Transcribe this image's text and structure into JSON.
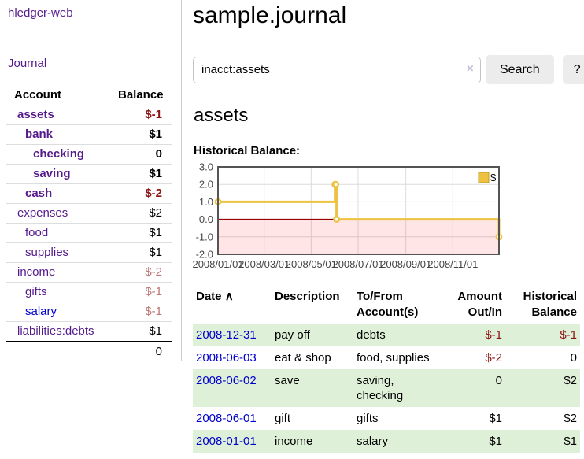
{
  "colors": {
    "link_purple": "#551a8b",
    "link_blue": "#0000cc",
    "negative": "#8b1414",
    "negative_muted": "#bd7575",
    "row_green": "#dff0d8",
    "series_gold": "#edc240",
    "series_gold_border": "#c0992b",
    "chart_zero_line": "#990000",
    "chart_negative_fill": "rgba(255,0,0,0.10)",
    "chart_border": "#545454",
    "chart_grid": "#dcdcdc"
  },
  "sidebar": {
    "app_title": "hledger-web",
    "journal_link": "Journal",
    "table": {
      "account_header": "Account",
      "balance_header": "Balance",
      "rows": [
        {
          "name": "assets",
          "balance": "$-1",
          "level": 1,
          "bold": true,
          "balance_style": "negative",
          "link_style": "purple"
        },
        {
          "name": "bank",
          "balance": "$1",
          "level": 2,
          "bold": true,
          "balance_style": "normal",
          "link_style": "purple"
        },
        {
          "name": "checking",
          "balance": "0",
          "level": 3,
          "bold": true,
          "balance_style": "normal",
          "link_style": "purple"
        },
        {
          "name": "saving",
          "balance": "$1",
          "level": 3,
          "bold": true,
          "balance_style": "normal",
          "link_style": "purple"
        },
        {
          "name": "cash",
          "balance": "$-2",
          "level": 2,
          "bold": true,
          "balance_style": "negative",
          "link_style": "purple"
        },
        {
          "name": "expenses",
          "balance": "$2",
          "level": 1,
          "bold": false,
          "balance_style": "normal",
          "link_style": "purple"
        },
        {
          "name": "food",
          "balance": "$1",
          "level": 2,
          "bold": false,
          "balance_style": "normal",
          "link_style": "purple"
        },
        {
          "name": "supplies",
          "balance": "$1",
          "level": 2,
          "bold": false,
          "balance_style": "normal",
          "link_style": "purple"
        },
        {
          "name": "income",
          "balance": "$-2",
          "level": 1,
          "bold": false,
          "balance_style": "negative-muted",
          "link_style": "purple"
        },
        {
          "name": "gifts",
          "balance": "$-1",
          "level": 2,
          "bold": false,
          "balance_style": "negative-muted",
          "link_style": "purple"
        },
        {
          "name": "salary",
          "balance": "$-1",
          "level": 2,
          "bold": false,
          "balance_style": "negative-muted",
          "link_style": "blue"
        },
        {
          "name": "liabilities:debts",
          "balance": "$1",
          "level": 1,
          "bold": false,
          "balance_style": "normal",
          "link_style": "purple"
        }
      ],
      "total": "0"
    }
  },
  "main": {
    "page_title": "sample.journal",
    "search": {
      "value": "inacct:assets",
      "clear_icon": "×",
      "button_label": "Search",
      "help_label": "?"
    },
    "account_title": "assets",
    "chart_heading": "Historical Balance:"
  },
  "chart_data": {
    "type": "line",
    "step": true,
    "title": "Historical Balance:",
    "series": [
      {
        "name": "$",
        "points": [
          [
            "2008-01-01",
            1
          ],
          [
            "2008-06-01",
            2
          ],
          [
            "2008-06-02",
            2
          ],
          [
            "2008-06-03",
            0
          ],
          [
            "2008-12-31",
            -1
          ]
        ]
      }
    ],
    "x_range": [
      "2008-01-01",
      "2008-12-31"
    ],
    "x_ticks": [
      "2008/01/01",
      "2008/03/01",
      "2008/05/01",
      "2008/07/01",
      "2008/09/01",
      "2008/11/01"
    ],
    "y_range": [
      -2,
      3
    ],
    "y_ticks": [
      3.0,
      2.0,
      1.0,
      0.0,
      -1.0,
      -2.0
    ],
    "legend_label": "$",
    "legend_position": "top-right",
    "grid": true,
    "negative_region_shaded": true
  },
  "register": {
    "headers": {
      "date": "Date",
      "sort_icon": "∧",
      "description": "Description",
      "accounts": "To/From Account(s)",
      "amount": "Amount Out/In",
      "balance": "Historical Balance"
    },
    "rows": [
      {
        "date": "2008-12-31",
        "description": "pay off",
        "accounts": "debts",
        "amount": "$-1",
        "balance": "$-1",
        "amount_style": "negative",
        "balance_style": "negative"
      },
      {
        "date": "2008-06-03",
        "description": "eat & shop",
        "accounts": "food, supplies",
        "amount": "$-2",
        "balance": "0",
        "amount_style": "negative",
        "balance_style": "normal"
      },
      {
        "date": "2008-06-02",
        "description": "save",
        "accounts": "saving, checking",
        "amount": "0",
        "balance": "$2",
        "amount_style": "normal",
        "balance_style": "normal"
      },
      {
        "date": "2008-06-01",
        "description": "gift",
        "accounts": "gifts",
        "amount": "$1",
        "balance": "$2",
        "amount_style": "normal",
        "balance_style": "normal"
      },
      {
        "date": "2008-01-01",
        "description": "income",
        "accounts": "salary",
        "amount": "$1",
        "balance": "$1",
        "amount_style": "normal",
        "balance_style": "normal"
      }
    ]
  }
}
